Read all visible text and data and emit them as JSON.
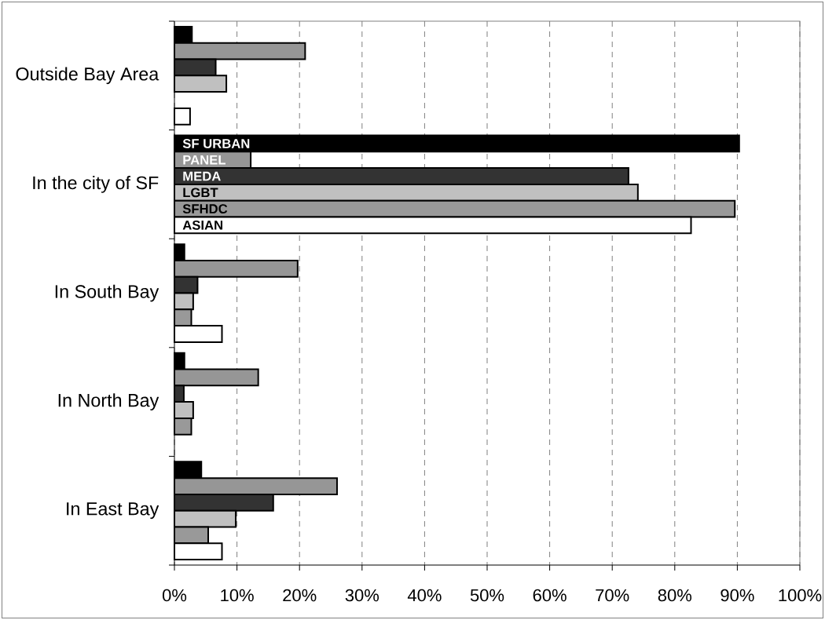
{
  "chart_data": {
    "type": "bar",
    "orientation": "horizontal",
    "categories": [
      "Outside Bay Area",
      "In the city of SF",
      "In South Bay",
      "In North Bay",
      "In East Bay"
    ],
    "series": [
      {
        "name": "SF URBAN",
        "color": "#000000",
        "values": [
          2.8,
          90.3,
          1.6,
          1.6,
          4.3
        ]
      },
      {
        "name": "PANEL",
        "color": "#969696",
        "values": [
          20.9,
          12.2,
          19.7,
          13.4,
          26.0
        ]
      },
      {
        "name": "MEDA",
        "color": "#333333",
        "values": [
          6.6,
          72.6,
          3.7,
          1.5,
          15.8
        ]
      },
      {
        "name": "LGBT",
        "color": "#c0c0c0",
        "values": [
          8.3,
          74.1,
          3.0,
          3.0,
          9.8
        ]
      },
      {
        "name": "SFHDC",
        "color": "#999999",
        "values": [
          null,
          89.6,
          2.7,
          2.7,
          5.4
        ]
      },
      {
        "name": "ASIAN",
        "color": "#ffffff",
        "values": [
          2.5,
          82.6,
          7.6,
          null,
          7.6
        ]
      }
    ],
    "xlim": [
      0,
      100
    ],
    "xticks": [
      {
        "value": 0,
        "label": "0%"
      },
      {
        "value": 10,
        "label": "10%"
      },
      {
        "value": 20,
        "label": "20%"
      },
      {
        "value": 30,
        "label": "30%"
      },
      {
        "value": 40,
        "label": "40%"
      },
      {
        "value": 50,
        "label": "50%"
      },
      {
        "value": 60,
        "label": "60%"
      },
      {
        "value": 70,
        "label": "70%"
      },
      {
        "value": 80,
        "label": "80%"
      },
      {
        "value": 90,
        "label": "90%"
      },
      {
        "value": 100,
        "label": "100%"
      }
    ],
    "grid": "x"
  }
}
